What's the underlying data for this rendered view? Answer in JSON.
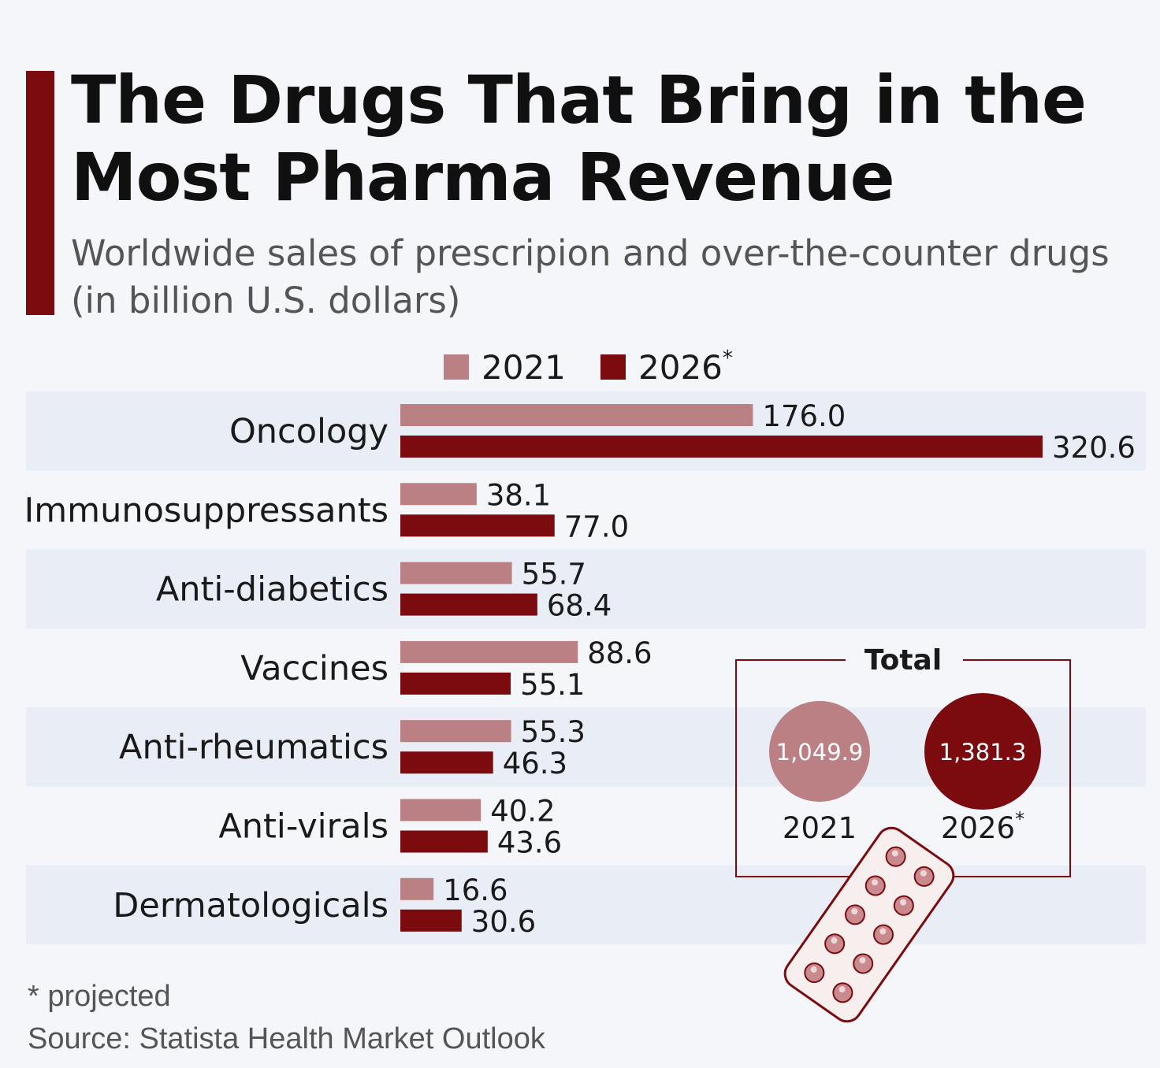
{
  "title": "The Drugs That Bring in the Most Pharma Revenue",
  "subtitle": "Worldwide sales of prescripion and over-the-counter drugs (in billion U.S. dollars)",
  "footnote": "* projected",
  "source": "Source: Statista Health Market Outlook",
  "colors": {
    "accent": "#7b0b0e",
    "series2021": "#bb8083",
    "series2026": "#7b0b0e",
    "band": "#e9edf5"
  },
  "pill_icon": "pill-blister-icon",
  "total": {
    "label": "Total",
    "items": [
      {
        "year": "2021",
        "value": "1,049.9"
      },
      {
        "year": "2026",
        "marker": "*",
        "value": "1,381.3"
      }
    ]
  },
  "chart_data": {
    "type": "bar",
    "orientation": "horizontal",
    "title": "The Drugs That Bring in the Most Pharma Revenue",
    "xlabel": "",
    "ylabel": "",
    "xlim": [
      0,
      320.6
    ],
    "grid": false,
    "legend_position": "top",
    "categories": [
      "Oncology",
      "Immunosuppressants",
      "Anti-diabetics",
      "Vaccines",
      "Anti-rheumatics",
      "Anti-virals",
      "Dermatologicals"
    ],
    "series": [
      {
        "name": "2021",
        "marker": "",
        "values": [
          176.0,
          38.1,
          55.7,
          88.6,
          55.3,
          40.2,
          16.6
        ]
      },
      {
        "name": "2026",
        "marker": "*",
        "values": [
          320.6,
          77.0,
          68.4,
          55.1,
          46.3,
          43.6,
          30.6
        ]
      }
    ]
  }
}
